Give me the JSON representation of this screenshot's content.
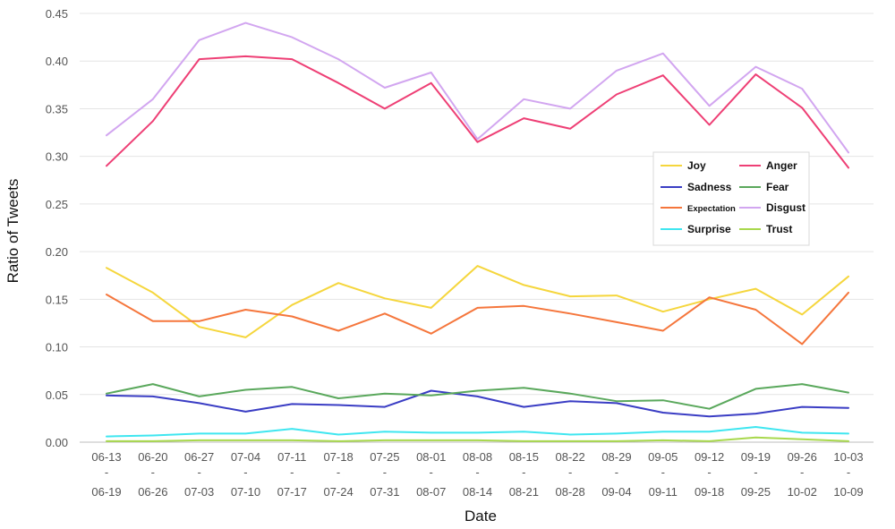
{
  "chart_data": {
    "type": "line",
    "title": "",
    "xlabel": "Date",
    "ylabel": "Ratio of Tweets",
    "ylim": [
      0,
      0.45
    ],
    "yticks": [
      "0.00",
      "0.05",
      "0.10",
      "0.15",
      "0.20",
      "0.25",
      "0.30",
      "0.35",
      "0.40",
      "0.45"
    ],
    "grid": true,
    "legend_position": "right-middle",
    "categories": [
      {
        "start": "06-13",
        "sep": "-",
        "end": "06-19"
      },
      {
        "start": "06-20",
        "sep": "-",
        "end": "06-26"
      },
      {
        "start": "06-27",
        "sep": "-",
        "end": "07-03"
      },
      {
        "start": "07-04",
        "sep": "-",
        "end": "07-10"
      },
      {
        "start": "07-11",
        "sep": "-",
        "end": "07-17"
      },
      {
        "start": "07-18",
        "sep": "-",
        "end": "07-24"
      },
      {
        "start": "07-25",
        "sep": "-",
        "end": "07-31"
      },
      {
        "start": "08-01",
        "sep": "-",
        "end": "08-07"
      },
      {
        "start": "08-08",
        "sep": "-",
        "end": "08-14"
      },
      {
        "start": "08-15",
        "sep": "-",
        "end": "08-21"
      },
      {
        "start": "08-22",
        "sep": "-",
        "end": "08-28"
      },
      {
        "start": "08-29",
        "sep": "-",
        "end": "09-04"
      },
      {
        "start": "09-05",
        "sep": "-",
        "end": "09-11"
      },
      {
        "start": "09-12",
        "sep": "-",
        "end": "09-18"
      },
      {
        "start": "09-19",
        "sep": "-",
        "end": "09-25"
      },
      {
        "start": "09-26",
        "sep": "-",
        "end": "10-02"
      },
      {
        "start": "10-03",
        "sep": "-",
        "end": "10-09"
      }
    ],
    "series": [
      {
        "name": "Joy",
        "color": "#f5d63d",
        "values": [
          0.183,
          0.157,
          0.121,
          0.11,
          0.144,
          0.167,
          0.151,
          0.141,
          0.185,
          0.165,
          0.153,
          0.154,
          0.137,
          0.15,
          0.161,
          0.134,
          0.174
        ]
      },
      {
        "name": "Anger",
        "color": "#ee3f75",
        "values": [
          0.29,
          0.337,
          0.402,
          0.405,
          0.402,
          0.377,
          0.35,
          0.377,
          0.315,
          0.34,
          0.329,
          0.365,
          0.385,
          0.333,
          0.386,
          0.351,
          0.288
        ]
      },
      {
        "name": "Sadness",
        "color": "#3a3dc4",
        "values": [
          0.049,
          0.048,
          0.041,
          0.032,
          0.04,
          0.039,
          0.037,
          0.054,
          0.048,
          0.037,
          0.043,
          0.041,
          0.031,
          0.027,
          0.03,
          0.037,
          0.036
        ]
      },
      {
        "name": "Fear",
        "color": "#5aa85c",
        "values": [
          0.051,
          0.061,
          0.048,
          0.055,
          0.058,
          0.046,
          0.051,
          0.049,
          0.054,
          0.057,
          0.051,
          0.043,
          0.044,
          0.035,
          0.056,
          0.061,
          0.052
        ]
      },
      {
        "name": "Expectation",
        "color": "#f5763c",
        "values": [
          0.155,
          0.127,
          0.127,
          0.139,
          0.132,
          0.117,
          0.135,
          0.114,
          0.141,
          0.143,
          0.135,
          0.126,
          0.117,
          0.152,
          0.139,
          0.103,
          0.157
        ]
      },
      {
        "name": "Disgust",
        "color": "#d2a6f0",
        "values": [
          0.322,
          0.36,
          0.422,
          0.44,
          0.425,
          0.402,
          0.372,
          0.388,
          0.318,
          0.36,
          0.35,
          0.39,
          0.408,
          0.353,
          0.394,
          0.371,
          0.304
        ]
      },
      {
        "name": "Surprise",
        "color": "#3fe6f0",
        "values": [
          0.006,
          0.007,
          0.009,
          0.009,
          0.014,
          0.008,
          0.011,
          0.01,
          0.01,
          0.011,
          0.008,
          0.009,
          0.011,
          0.011,
          0.016,
          0.01,
          0.009
        ]
      },
      {
        "name": "Trust",
        "color": "#a8d84c",
        "values": [
          0.001,
          0.001,
          0.002,
          0.002,
          0.002,
          0.001,
          0.002,
          0.002,
          0.002,
          0.001,
          0.001,
          0.001,
          0.002,
          0.001,
          0.005,
          0.003,
          0.001
        ]
      }
    ],
    "legend_order": [
      [
        "Joy",
        "Anger"
      ],
      [
        "Sadness",
        "Fear"
      ],
      [
        "Expectation",
        "Disgust"
      ],
      [
        "Surprise",
        "Trust"
      ]
    ]
  }
}
